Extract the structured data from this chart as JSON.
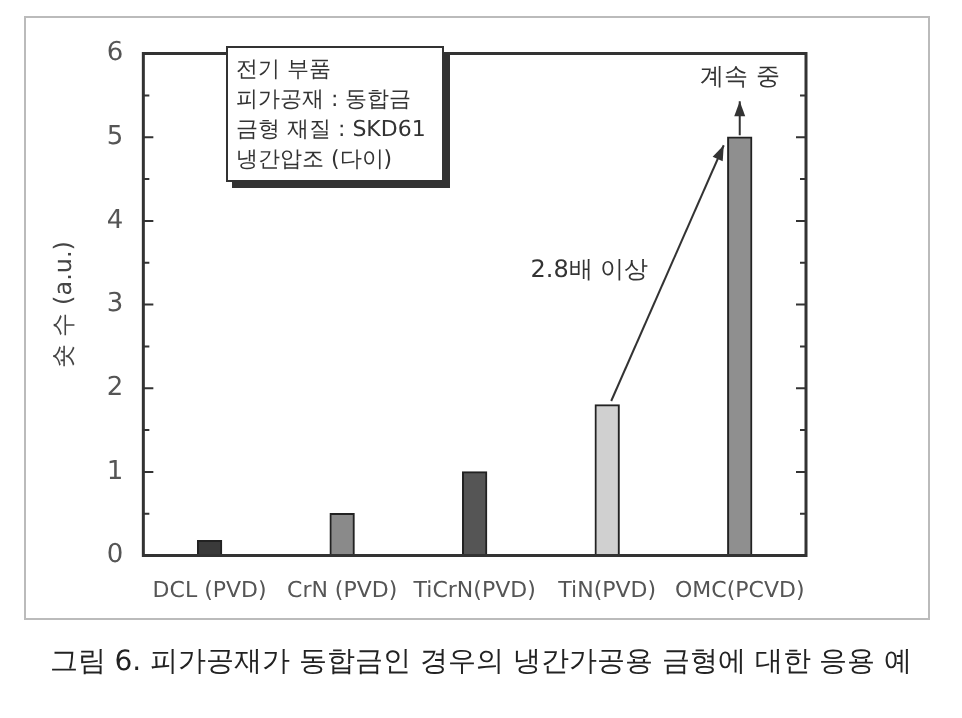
{
  "chart_data": {
    "type": "bar",
    "title": "그림 6. 피가공재가 동합금인 경우의 냉간가공용 금형에 대한 응용 예",
    "ylabel": "숏 수 (a.u.)",
    "categories": [
      "DCL (PVD)",
      "CrN (PVD)",
      "TiCrN(PVD)",
      "TiN(PVD)",
      "OMC(PCVD)"
    ],
    "values": [
      0.18,
      0.5,
      1.0,
      1.8,
      5.0
    ],
    "colors": [
      "#3a3a3a",
      "#8a8a8a",
      "#555555",
      "#d0d0d0",
      "#8f8f8f"
    ],
    "ylim": [
      0,
      6
    ],
    "yticks": [
      0,
      1,
      2,
      3,
      4,
      5,
      6
    ],
    "grid": false,
    "legend": false,
    "annotations": [
      "전기 부품\n피가공재 : 동합금\n금형 재질 : SKD61\n냉간압조 (다이)",
      "2.8배 이상",
      {
        "text": "계속 중",
        "x": "OMC(PCVD)",
        "y": 5
      }
    ]
  }
}
